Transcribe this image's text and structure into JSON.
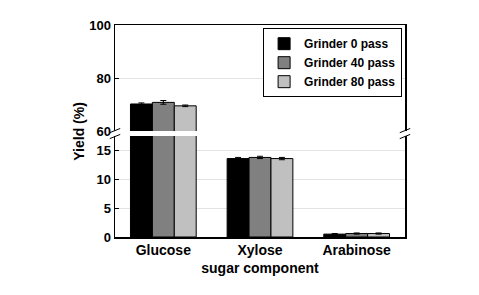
{
  "chart_data": {
    "type": "bar",
    "categories": [
      "Glucose",
      "Xylose",
      "Arabinose"
    ],
    "series": [
      {
        "name": "Grinder 0 pass",
        "color": "#000000",
        "values": [
          70.2,
          13.6,
          0.5
        ],
        "errors": [
          0.4,
          0.2,
          0.1
        ]
      },
      {
        "name": "Grinder 40 pass",
        "color": "#808080",
        "values": [
          70.8,
          13.8,
          0.6
        ],
        "errors": [
          0.7,
          0.2,
          0.1
        ]
      },
      {
        "name": "Grinder 80 pass",
        "color": "#c0c0c0",
        "values": [
          69.5,
          13.6,
          0.6
        ],
        "errors": [
          0.3,
          0.2,
          0.1
        ]
      }
    ],
    "xlabel": "sugar component",
    "ylabel": "Yield (%)",
    "ylim": [
      [
        0,
        17.5
      ],
      [
        60,
        100
      ]
    ],
    "yticks": [
      [
        0,
        5,
        10,
        15
      ],
      [
        60,
        80,
        100
      ]
    ],
    "grid": true,
    "legend": "upper right"
  }
}
